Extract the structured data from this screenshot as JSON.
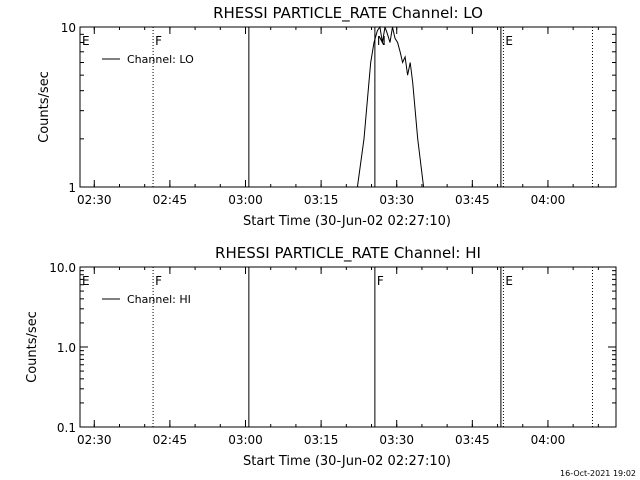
{
  "footer": {
    "timestamp": "16-Oct-2021 19:02"
  },
  "chart_data": [
    {
      "type": "line",
      "title": "RHESSI PARTICLE_RATE Channel: LO",
      "xlabel": "Start Time (30-Jun-02 02:27:10)",
      "ylabel": "Counts/sec",
      "yscale": "log",
      "ylim": [
        1,
        10
      ],
      "xlim": [
        "02:27:10",
        "04:13:30"
      ],
      "x_ticks": [
        "02:30",
        "02:45",
        "03:00",
        "03:15",
        "03:30",
        "03:45",
        "04:00"
      ],
      "y_ticks": [
        {
          "value": 1,
          "label": "1"
        },
        {
          "value": 10,
          "label": "10"
        }
      ],
      "legend": {
        "position": "top-left",
        "entries": [
          "Channel: LO"
        ]
      },
      "series": [
        {
          "name": "Channel: LO",
          "points": [
            [
              "03:22:12",
              1
            ],
            [
              "03:23:30",
              2
            ],
            [
              "03:24:20",
              4
            ],
            [
              "03:24:50",
              6
            ],
            [
              "03:25:30",
              8
            ],
            [
              "03:26:10",
              9.5
            ],
            [
              "03:26:40",
              10
            ],
            [
              "03:27:10",
              8
            ],
            [
              "03:27:40",
              10
            ],
            [
              "03:28:10",
              9
            ],
            [
              "03:28:40",
              8
            ],
            [
              "03:29:10",
              10
            ],
            [
              "03:29:40",
              8.5
            ],
            [
              "03:30:10",
              8
            ],
            [
              "03:30:40",
              7
            ],
            [
              "03:31:10",
              6
            ],
            [
              "03:31:40",
              6.5
            ],
            [
              "03:32:10",
              5
            ],
            [
              "03:32:40",
              6
            ],
            [
              "03:33:10",
              4.5
            ],
            [
              "03:33:40",
              3
            ],
            [
              "03:34:10",
              2
            ],
            [
              "03:35:20",
              1
            ]
          ]
        }
      ],
      "boundaries": [
        {
          "time": "02:27:10",
          "style": "solid",
          "label": "E"
        },
        {
          "time": "02:41:40",
          "style": "dotted",
          "label": "F"
        },
        {
          "time": "03:00:40",
          "style": "solid",
          "label": ""
        },
        {
          "time": "03:25:40",
          "style": "solid",
          "label": "N"
        },
        {
          "time": "03:50:40",
          "style": "solid",
          "label": ""
        },
        {
          "time": "03:51:10",
          "style": "dotted",
          "label": "E"
        },
        {
          "time": "04:08:50",
          "style": "dotted",
          "label": ""
        }
      ]
    },
    {
      "type": "line",
      "title": "RHESSI PARTICLE_RATE Channel: HI",
      "xlabel": "Start Time (30-Jun-02 02:27:10)",
      "ylabel": "Counts/sec",
      "yscale": "log",
      "ylim": [
        0.1,
        10
      ],
      "xlim": [
        "02:27:10",
        "04:13:30"
      ],
      "x_ticks": [
        "02:30",
        "02:45",
        "03:00",
        "03:15",
        "03:30",
        "03:45",
        "04:00"
      ],
      "y_ticks": [
        {
          "value": 0.1,
          "label": "0.1"
        },
        {
          "value": 1,
          "label": "1.0"
        },
        {
          "value": 10,
          "label": "10.0"
        }
      ],
      "legend": {
        "position": "top-left",
        "entries": [
          "Channel: HI"
        ]
      },
      "series": [
        {
          "name": "Channel: HI",
          "points": []
        }
      ],
      "boundaries": [
        {
          "time": "02:27:10",
          "style": "solid",
          "label": "E"
        },
        {
          "time": "02:41:40",
          "style": "dotted",
          "label": "F"
        },
        {
          "time": "03:00:40",
          "style": "solid",
          "label": ""
        },
        {
          "time": "03:25:40",
          "style": "solid",
          "label": "F"
        },
        {
          "time": "03:50:40",
          "style": "solid",
          "label": ""
        },
        {
          "time": "03:51:10",
          "style": "dotted",
          "label": "E"
        },
        {
          "time": "04:08:50",
          "style": "dotted",
          "label": ""
        }
      ]
    }
  ]
}
